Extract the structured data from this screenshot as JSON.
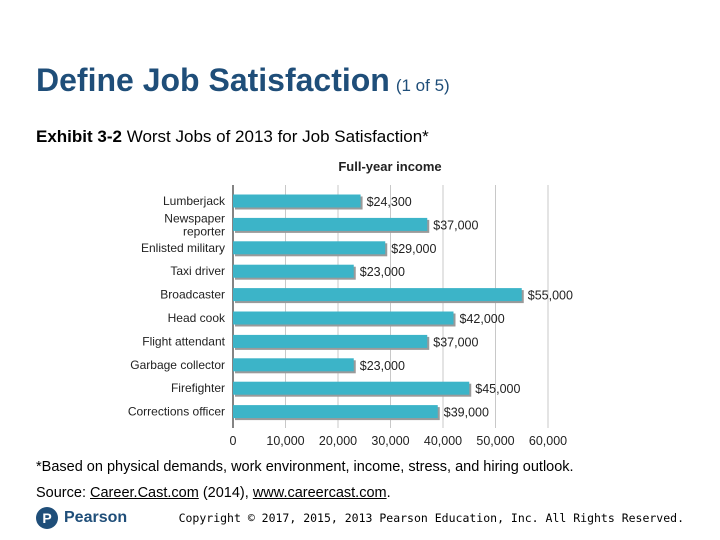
{
  "slide": {
    "title": "Define Job Satisfaction",
    "title_part": "(1 of 5)",
    "exhibit_number": "Exhibit 3-2",
    "exhibit_title": "Worst Jobs of 2013 for Job Satisfaction*",
    "footnote": "*Based on physical demands, work environment, income, stress, and hiring outlook.",
    "source_prefix": "Source:",
    "source_link": "Career.Cast.com",
    "source_year": "(2014),",
    "source_url": "www.careercast.com",
    "source_end": ".",
    "logo_letter": "P",
    "logo_text": "Pearson",
    "copyright": "Copyright © 2017, 2015, 2013 Pearson Education, Inc. All Rights Reserved."
  },
  "colors": {
    "title": "#1f4e79",
    "bar": "#3cb4c8",
    "bar_shadow": "#9a9a9a",
    "grid": "#c8c8c8",
    "axis": "#333333"
  },
  "chart_data": {
    "type": "bar",
    "orientation": "horizontal",
    "title": "Full-year income",
    "categories": [
      "Lumberjack",
      "Newspaper reporter",
      "Enlisted military",
      "Taxi driver",
      "Broadcaster",
      "Head cook",
      "Flight attendant",
      "Garbage collector",
      "Firefighter",
      "Corrections officer"
    ],
    "category_lines": [
      [
        "Lumberjack"
      ],
      [
        "Newspaper",
        "reporter"
      ],
      [
        "Enlisted military"
      ],
      [
        "Taxi driver"
      ],
      [
        "Broadcaster"
      ],
      [
        "Head cook"
      ],
      [
        "Flight attendant"
      ],
      [
        "Garbage collector"
      ],
      [
        "Firefighter"
      ],
      [
        "Corrections officer"
      ]
    ],
    "values": [
      24300,
      37000,
      29000,
      23000,
      55000,
      42000,
      37000,
      23000,
      45000,
      39000
    ],
    "value_labels": [
      "$24,300",
      "$37,000",
      "$29,000",
      "$23,000",
      "$55,000",
      "$42,000",
      "$37,000",
      "$23,000",
      "$45,000",
      "$39,000"
    ],
    "xlim": [
      0,
      60000
    ],
    "xticks": [
      0,
      10000,
      20000,
      30000,
      40000,
      50000,
      60000
    ],
    "xtick_labels": [
      "0",
      "10,000",
      "20,000",
      "30,000",
      "40,000",
      "50,000",
      "60,000"
    ],
    "grid": true,
    "legend": "none"
  }
}
